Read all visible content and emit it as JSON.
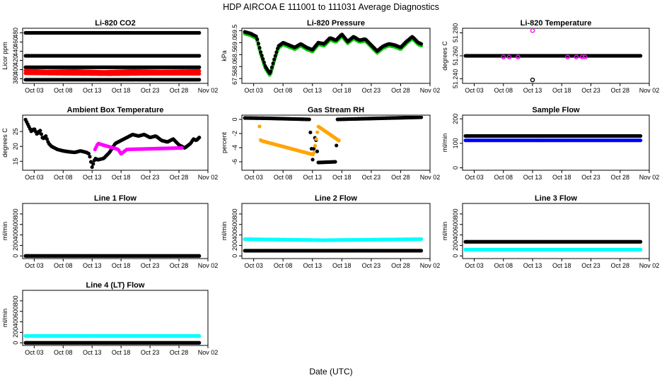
{
  "title": "HDP    AIRCOA E    111001 to 111031    Average Diagnostics",
  "xlabel": "Date (UTC)",
  "x_ticks": [
    "Oct 03",
    "Oct 08",
    "Oct 13",
    "Oct 18",
    "Oct 23",
    "Oct 28",
    "Nov 02"
  ],
  "colors": {
    "black": "#000000",
    "red": "#ff0000",
    "green": "#00cc00",
    "magenta": "#ff00ff",
    "orange": "#ffa500",
    "blue": "#0000ff",
    "cyan": "#00ffff"
  },
  "chart_data": [
    {
      "type": "scatter",
      "title": "Li-820 CO2",
      "ylabel": "Licor ppm",
      "ylim": [
        370,
        490
      ],
      "yticks": [
        "380",
        "400",
        "420",
        "440",
        "460",
        "480"
      ],
      "xlim": [
        1,
        33
      ],
      "series": [
        {
          "name": "line-480",
          "color": "black",
          "points": [
            [
              1.5,
              480
            ],
            [
              31.5,
              480
            ]
          ]
        },
        {
          "name": "line-430",
          "color": "black",
          "points": [
            [
              1.5,
              430
            ],
            [
              31.5,
              430
            ]
          ]
        },
        {
          "name": "line-405",
          "color": "black",
          "points": [
            [
              1.5,
              405
            ],
            [
              31.5,
              405
            ]
          ]
        },
        {
          "name": "red-band",
          "color": "red",
          "points": [
            [
              1.5,
              398
            ],
            [
              5,
              396
            ],
            [
              10,
              397
            ],
            [
              15,
              395
            ],
            [
              20,
              397
            ],
            [
              25,
              396
            ],
            [
              31.5,
              397
            ]
          ]
        },
        {
          "name": "red-band-low",
          "color": "red",
          "points": [
            [
              1.5,
              392
            ],
            [
              8,
              391
            ],
            [
              16,
              390
            ],
            [
              24,
              391
            ],
            [
              31.5,
              391
            ]
          ]
        },
        {
          "name": "line-380",
          "color": "black",
          "points": [
            [
              1.5,
              378
            ],
            [
              31.5,
              378
            ]
          ]
        }
      ]
    },
    {
      "type": "line",
      "title": "Li-820 Pressure",
      "ylabel": "kPa",
      "ylim": [
        67.3,
        69.6
      ],
      "yticks": [
        "67.5",
        "68.0",
        "68.5",
        "69.0",
        "69.5"
      ],
      "xlim": [
        1,
        33
      ],
      "series": [
        {
          "name": "pressure",
          "color": "black",
          "halo": "green",
          "points": [
            [
              1.5,
              69.45
            ],
            [
              2.5,
              69.38
            ],
            [
              3.5,
              69.25
            ],
            [
              4.2,
              68.6
            ],
            [
              5,
              68.0
            ],
            [
              5.8,
              67.7
            ],
            [
              6.5,
              68.3
            ],
            [
              7.2,
              68.85
            ],
            [
              8,
              69.0
            ],
            [
              9,
              68.9
            ],
            [
              10,
              68.8
            ],
            [
              11,
              68.95
            ],
            [
              12,
              68.8
            ],
            [
              13,
              68.7
            ],
            [
              14,
              69.0
            ],
            [
              15,
              68.95
            ],
            [
              16,
              69.2
            ],
            [
              17,
              69.1
            ],
            [
              18,
              69.35
            ],
            [
              19,
              69.05
            ],
            [
              20,
              69.25
            ],
            [
              21,
              69.1
            ],
            [
              22,
              69.15
            ],
            [
              23,
              68.9
            ],
            [
              24,
              68.65
            ],
            [
              25,
              68.85
            ],
            [
              26,
              68.95
            ],
            [
              27,
              68.9
            ],
            [
              28,
              68.8
            ],
            [
              29,
              69.05
            ],
            [
              30,
              69.25
            ],
            [
              31,
              69.0
            ],
            [
              31.5,
              68.95
            ]
          ]
        }
      ]
    },
    {
      "type": "scatter",
      "title": "Li-820 Temperature",
      "ylabel": "degrees C",
      "ylim": [
        51.236,
        51.284
      ],
      "yticks": [
        "51.240",
        "51.260",
        "51.280"
      ],
      "xlim": [
        1,
        33
      ],
      "series": [
        {
          "name": "temperature",
          "color": "black",
          "points": [
            [
              1.5,
              51.26
            ],
            [
              31.5,
              51.26
            ]
          ]
        },
        {
          "name": "temp-outliers-magenta",
          "color": "magenta",
          "points": [
            [
              8,
              51.259
            ],
            [
              9,
              51.259
            ],
            [
              10.5,
              51.259
            ],
            [
              13,
              51.282
            ],
            [
              19,
              51.259
            ],
            [
              20.5,
              51.259
            ],
            [
              21.5,
              51.259
            ],
            [
              22,
              51.259
            ]
          ]
        },
        {
          "name": "temp-outlier-black",
          "color": "black",
          "points": [
            [
              13,
              51.239
            ]
          ]
        }
      ]
    },
    {
      "type": "line",
      "title": "Ambient Box Temperature",
      "ylabel": "degrees C",
      "ylim": [
        12,
        30.5
      ],
      "yticks": [
        "15",
        "20",
        "25"
      ],
      "xlim": [
        1,
        33
      ],
      "series": [
        {
          "name": "ambient",
          "color": "black",
          "points": [
            [
              1.5,
              29
            ],
            [
              2,
              27
            ],
            [
              2.5,
              25
            ],
            [
              3,
              26
            ],
            [
              3.5,
              24
            ],
            [
              4,
              25.5
            ],
            [
              4.5,
              22.5
            ],
            [
              5,
              23.5
            ],
            [
              5.5,
              21
            ],
            [
              6,
              20
            ],
            [
              7,
              19
            ],
            [
              8,
              18.5
            ],
            [
              9,
              18.2
            ],
            [
              10,
              18
            ],
            [
              11,
              18.5
            ],
            [
              12,
              18
            ],
            [
              12.5,
              17.5
            ],
            [
              13,
              13
            ],
            [
              13.5,
              16
            ],
            [
              14,
              15.5
            ],
            [
              15,
              16
            ],
            [
              16,
              18
            ],
            [
              17,
              21
            ],
            [
              18,
              22
            ],
            [
              19,
              23
            ],
            [
              20,
              24
            ],
            [
              21,
              23.5
            ],
            [
              22,
              24
            ],
            [
              23,
              23
            ],
            [
              24,
              23.5
            ],
            [
              25,
              22
            ],
            [
              26,
              21.5
            ],
            [
              27,
              22.5
            ],
            [
              28,
              20.5
            ],
            [
              29,
              19.5
            ],
            [
              30,
              21
            ],
            [
              30.5,
              22.5
            ],
            [
              31,
              22
            ],
            [
              31.5,
              23
            ]
          ]
        },
        {
          "name": "ambient-spikes",
          "color": "magenta",
          "points": [
            [
              13.5,
              19
            ],
            [
              14,
              21
            ],
            [
              17.5,
              19
            ],
            [
              18,
              17.5
            ],
            [
              19,
              19
            ],
            [
              28.5,
              19.5
            ]
          ]
        }
      ]
    },
    {
      "type": "scatter",
      "title": "Gas Stream RH",
      "ylabel": "percent",
      "ylim": [
        -7.2,
        0.6
      ],
      "yticks": [
        "-6",
        "-4",
        "-2",
        "0"
      ],
      "xlim": [
        1,
        33
      ],
      "series": [
        {
          "name": "rh",
          "color": "black",
          "points": [
            [
              1.5,
              0.2
            ],
            [
              5.5,
              0.15
            ],
            [
              12.5,
              0.0
            ],
            [
              13.0,
              -6.0
            ],
            [
              13.5,
              -2.0
            ],
            [
              14,
              -6.1
            ],
            [
              17,
              -6.0
            ],
            [
              17.2,
              0.0
            ],
            [
              31.5,
              0.3
            ]
          ]
        },
        {
          "name": "rh-orange",
          "color": "orange",
          "points": [
            [
              4,
              -1.0
            ],
            [
              4.2,
              -3.0
            ],
            [
              13.2,
              -5.0
            ],
            [
              14,
              -1.0
            ],
            [
              17.5,
              -3.0
            ]
          ]
        }
      ]
    },
    {
      "type": "scatter",
      "title": "Sample Flow",
      "ylabel": "ml/min",
      "ylim": [
        -10,
        215
      ],
      "yticks": [
        "0",
        "100",
        "200"
      ],
      "xlim": [
        1,
        33
      ],
      "series": [
        {
          "name": "sample-black",
          "color": "black",
          "points": [
            [
              1.5,
              130
            ],
            [
              31.5,
              130
            ]
          ]
        },
        {
          "name": "sample-blue",
          "color": "blue",
          "points": [
            [
              1.5,
              112
            ],
            [
              31.5,
              112
            ]
          ]
        }
      ]
    },
    {
      "type": "scatter",
      "title": "Line 1 Flow",
      "ylabel": "ml/min",
      "ylim": [
        -50,
        1000
      ],
      "yticks": [
        "0",
        "200",
        "400",
        "600",
        "800"
      ],
      "xlim": [
        1,
        33
      ],
      "series": [
        {
          "name": "line1",
          "color": "black",
          "points": [
            [
              1.5,
              0
            ],
            [
              31.5,
              0
            ]
          ]
        }
      ]
    },
    {
      "type": "scatter",
      "title": "Line 2 Flow",
      "ylabel": "ml/min",
      "ylim": [
        -50,
        1000
      ],
      "yticks": [
        "0",
        "200",
        "400",
        "600",
        "800"
      ],
      "xlim": [
        1,
        33
      ],
      "series": [
        {
          "name": "line2-cyan",
          "color": "cyan",
          "points": [
            [
              1.5,
              320
            ],
            [
              15,
              300
            ],
            [
              31.5,
              320
            ]
          ]
        },
        {
          "name": "line2-black",
          "color": "black",
          "points": [
            [
              1.5,
              100
            ],
            [
              31.5,
              100
            ]
          ]
        }
      ]
    },
    {
      "type": "scatter",
      "title": "Line 3 Flow",
      "ylabel": "ml/min",
      "ylim": [
        -50,
        1000
      ],
      "yticks": [
        "0",
        "200",
        "400",
        "600",
        "800"
      ],
      "xlim": [
        1,
        33
      ],
      "series": [
        {
          "name": "line3-black",
          "color": "black",
          "points": [
            [
              1.5,
              270
            ],
            [
              31.5,
              270
            ]
          ]
        },
        {
          "name": "line3-cyan",
          "color": "cyan",
          "points": [
            [
              1.5,
              120
            ],
            [
              31.5,
              120
            ]
          ]
        }
      ]
    },
    {
      "type": "scatter",
      "title": "Line 4 (LT) Flow",
      "ylabel": "ml/min",
      "ylim": [
        -50,
        1000
      ],
      "yticks": [
        "0",
        "200",
        "400",
        "600",
        "800"
      ],
      "xlim": [
        1,
        33
      ],
      "series": [
        {
          "name": "line4-cyan",
          "color": "cyan",
          "points": [
            [
              1.5,
              130
            ],
            [
              31.5,
              130
            ]
          ]
        },
        {
          "name": "line4-black",
          "color": "black",
          "points": [
            [
              1.5,
              0
            ],
            [
              31.5,
              0
            ]
          ]
        }
      ]
    }
  ]
}
